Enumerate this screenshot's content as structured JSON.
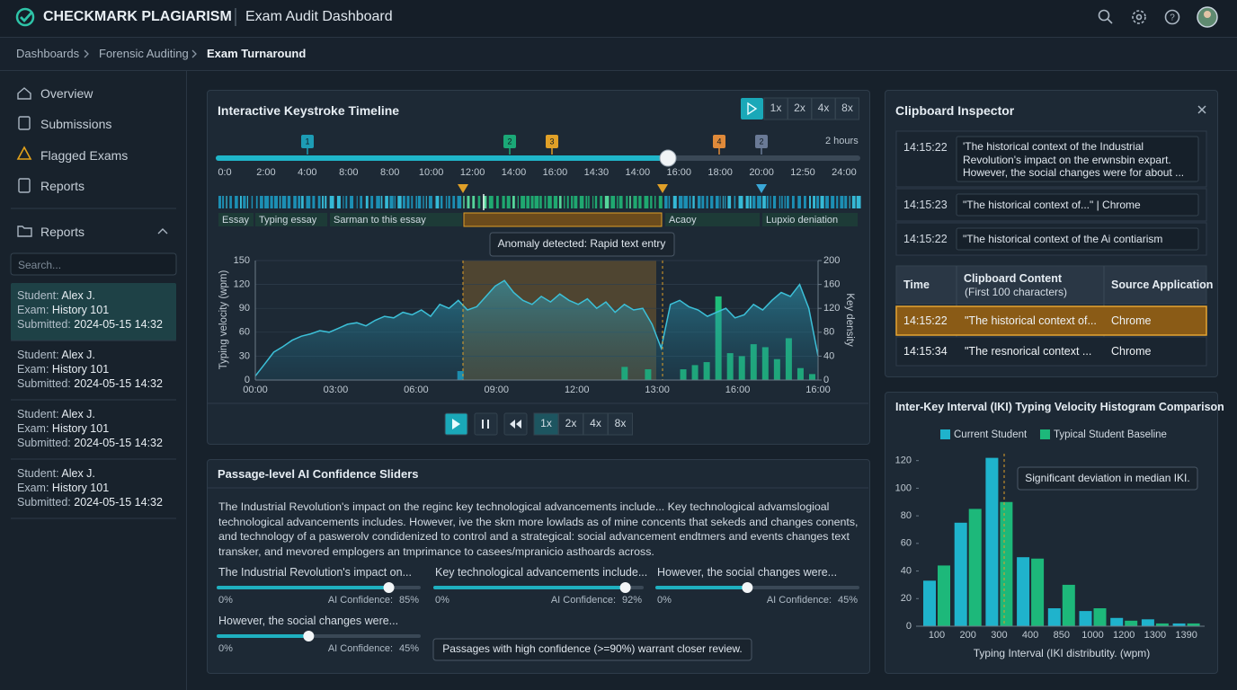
{
  "header": {
    "brand": "CHECKMARK PLAGIARISM",
    "title": "Exam Audit Dashboard"
  },
  "breadcrumb": [
    "Dashboards",
    "Forensic Auditing",
    "Exam Turnaround"
  ],
  "sidebar": {
    "nav": [
      "Overview",
      "Submissions",
      "Flagged Exams",
      "Reports"
    ],
    "section": "Reports",
    "search_placeholder": "Search...",
    "labels": {
      "student": "Student:",
      "exam": "Exam:",
      "submitted": "Submitted:"
    },
    "students": [
      {
        "student": "Alex J.",
        "exam": "History 101",
        "submitted": "2024-05-15 14:32"
      },
      {
        "student": "Alex J.",
        "exam": "History 101",
        "submitted": "2024-05-15 14:32"
      },
      {
        "student": "Alex J.",
        "exam": "History 101",
        "submitted": "2024-05-15 14:32"
      },
      {
        "student": "Alex J.",
        "exam": "History 101",
        "submitted": "2024-05-15 14:32"
      }
    ]
  },
  "timeline": {
    "title": "Interactive Keystroke Timeline",
    "speeds": [
      "1x",
      "2x",
      "4x",
      "8x"
    ],
    "duration": "2 hours",
    "markers": [
      {
        "label": "1",
        "color": "#1d9cb5"
      },
      {
        "label": "2",
        "color": "#1ba877"
      },
      {
        "label": "3",
        "color": "#e0a028"
      },
      {
        "label": "4",
        "color": "#e08a3a"
      },
      {
        "label": "2",
        "color": "#6a7a96"
      }
    ],
    "ticks": [
      "0:0",
      "2:00",
      "4:00",
      "8:00",
      "8:00",
      "10:00",
      "12:00",
      "14:00",
      "16:00",
      "14:30",
      "14:00",
      "16:00",
      "18:00",
      "20:00",
      "12:50",
      "24:00"
    ],
    "segments": [
      "Essay",
      "Typing essay",
      "Sarman to this essay",
      "Acaoy",
      "Lupxio deniation"
    ],
    "tooltip": "Anomaly detected: Rapid text entry"
  },
  "velocity_chart": {
    "type": "line",
    "y_label": "Typing velocity (wpm)",
    "y2_label": "Key density",
    "x_labels": [
      "00:00",
      "03:00",
      "06:00",
      "09:00",
      "12:00",
      "13:00",
      "16:00",
      "16:00"
    ],
    "ylim": [
      0,
      150
    ],
    "yticks": [
      0,
      30,
      60,
      90,
      120,
      150
    ],
    "y2lim": [
      0,
      200
    ],
    "y2ticks": [
      0,
      40,
      80,
      120,
      160,
      200
    ],
    "velocity": {
      "color": "#3cc0d8",
      "values": [
        5,
        20,
        35,
        42,
        50,
        55,
        58,
        62,
        60,
        65,
        70,
        72,
        68,
        75,
        80,
        78,
        85,
        82,
        88,
        80,
        95,
        90,
        100,
        88,
        92,
        105,
        118,
        125,
        110,
        100,
        95,
        105,
        98,
        108,
        100,
        95,
        102,
        90,
        98,
        85,
        95,
        88,
        90,
        70,
        40,
        95,
        100,
        92,
        88,
        80,
        85,
        90,
        78,
        82,
        95,
        88,
        100,
        110,
        105,
        120,
        90,
        30
      ]
    },
    "density": {
      "color": "#1fbf7a",
      "axis": "y2",
      "values": [
        0,
        0,
        0,
        0,
        0,
        0,
        0,
        0,
        0,
        0,
        0,
        0,
        0,
        0,
        0,
        0,
        0,
        15,
        0,
        0,
        0,
        0,
        0,
        0,
        0,
        0,
        0,
        0,
        0,
        0,
        0,
        22,
        0,
        18,
        0,
        0,
        18,
        25,
        30,
        140,
        45,
        40,
        60,
        55,
        35,
        70,
        20,
        10
      ]
    }
  },
  "playback_speeds": [
    "1x",
    "2x",
    "4x",
    "8x"
  ],
  "passages": {
    "title": "Passage-level AI Confidence Sliders",
    "text": "The Industrial Revolution's impact on the reginc key technological advancements include... Key technological advamslogioal technological advancements includes. However, ive the skm more lowlads as of mine concents that sekeds and changes conents, and technology of a paswerolv condidenized to control and a strategical: social advancement endtmers and events changes text transker, and mevored emplogers an tmprimance to casees/mpranicio asthoards across.",
    "sliders": [
      {
        "label": "The Industrial Revolution's impact on...",
        "min_label": "0%",
        "confidence_label": "AI Confidence:",
        "value": 85,
        "value_label": "85%"
      },
      {
        "label": "Key technological advancements include...",
        "min_label": "0%",
        "confidence_label": "AI Confidence:",
        "value": 92,
        "value_label": "92%"
      },
      {
        "label": "However, the social changes were...",
        "min_label": "0%",
        "confidence_label": "AI Confidence:",
        "value": 45,
        "value_label": "45%"
      },
      {
        "label": "However, the social changes were...",
        "min_label": "0%",
        "confidence_label": "AI Confidence:",
        "value": 45,
        "value_label": "45%"
      }
    ],
    "tooltip": "Passages with high confidence (>=90%) warrant closer review."
  },
  "clipboard": {
    "title": "Clipboard Inspector",
    "entries": [
      {
        "time": "14:15:22",
        "text": "'The historical context of the Industrial Revolution's impact on the erwnsbin expart. However, the social changes were for about ..."
      },
      {
        "time": "14:15:23",
        "text": "\"The historical context of...\" | Chrome"
      },
      {
        "time": "14:15:22",
        "text": "\"The historical context of the Ai contiarism"
      }
    ],
    "table": {
      "headers": [
        "Time",
        "Clipboard Content",
        "Source Application"
      ],
      "subheader": "(First 100 characters)",
      "rows": [
        [
          "14:15:22",
          "\"The historical context of...",
          "Chrome"
        ],
        [
          "14:15:34",
          "\"The resnorical context ...",
          "Chrome"
        ]
      ]
    }
  },
  "histogram": {
    "type": "bar",
    "title": "Inter-Key Interval (IKI) Typing Velocity Histogram Comparison",
    "categories": [
      "100",
      "200",
      "300",
      "400",
      "850",
      "1000",
      "1200",
      "1300",
      "1390"
    ],
    "series": [
      {
        "name": "Current Student",
        "color": "#1fb3cc",
        "values": [
          33,
          75,
          122,
          50,
          13,
          11,
          6,
          5,
          2
        ]
      },
      {
        "name": "Typical Student Baseline",
        "color": "#1db87a",
        "values": [
          44,
          85,
          90,
          49,
          30,
          13,
          4,
          2,
          2
        ]
      }
    ],
    "ylim": [
      0,
      125
    ],
    "yticks": [
      0,
      20,
      40,
      60,
      80,
      100,
      120
    ],
    "x_label": "Typing Interval (IKI distributity. (wpm)",
    "annotation": "Significant deviation in median IKI."
  }
}
